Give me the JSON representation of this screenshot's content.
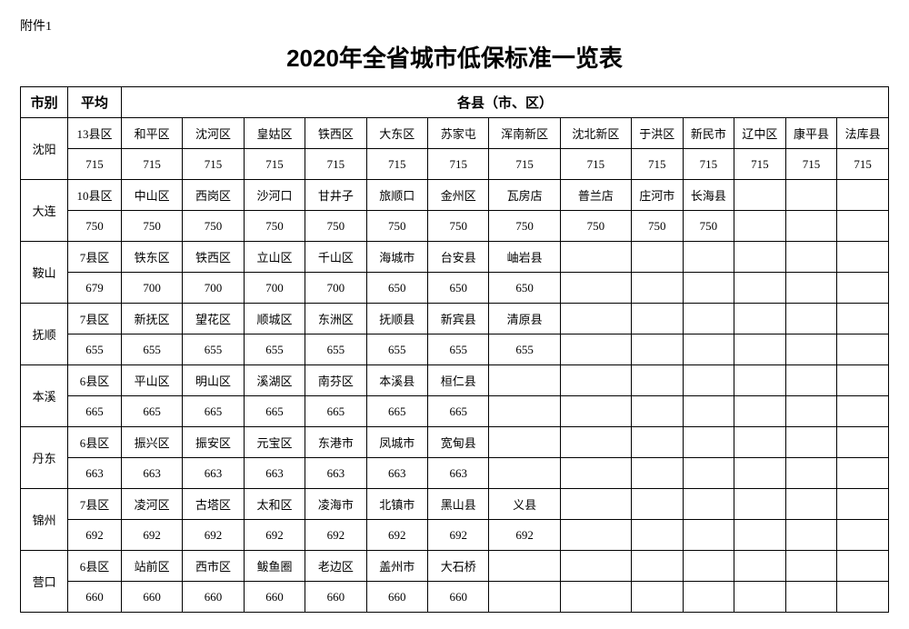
{
  "attachment_label": "附件1",
  "title": "2020年全省城市低保标准一览表",
  "header": {
    "city": "市别",
    "avg": "平均",
    "districts": "各县（市、区）"
  },
  "num_district_cols": 13,
  "cities": [
    {
      "name": "沈阳",
      "summary": "13县区",
      "avg_value": "715",
      "districts": [
        "和平区",
        "沈河区",
        "皇姑区",
        "铁西区",
        "大东区",
        "苏家屯",
        "浑南新区",
        "沈北新区",
        "于洪区",
        "新民市",
        "辽中区",
        "康平县",
        "法库县"
      ],
      "values": [
        "715",
        "715",
        "715",
        "715",
        "715",
        "715",
        "715",
        "715",
        "715",
        "715",
        "715",
        "715",
        "715"
      ]
    },
    {
      "name": "大连",
      "summary": "10县区",
      "avg_value": "750",
      "districts": [
        "中山区",
        "西岗区",
        "沙河口",
        "甘井子",
        "旅顺口",
        "金州区",
        "瓦房店",
        "普兰店",
        "庄河市",
        "长海县",
        "",
        "",
        ""
      ],
      "values": [
        "750",
        "750",
        "750",
        "750",
        "750",
        "750",
        "750",
        "750",
        "750",
        "750",
        "",
        "",
        ""
      ]
    },
    {
      "name": "鞍山",
      "summary": "7县区",
      "avg_value": "679",
      "districts": [
        "铁东区",
        "铁西区",
        "立山区",
        "千山区",
        "海城市",
        "台安县",
        "岫岩县",
        "",
        "",
        "",
        "",
        "",
        ""
      ],
      "values": [
        "700",
        "700",
        "700",
        "700",
        "650",
        "650",
        "650",
        "",
        "",
        "",
        "",
        "",
        ""
      ]
    },
    {
      "name": "抚顺",
      "summary": "7县区",
      "avg_value": "655",
      "districts": [
        "新抚区",
        "望花区",
        "顺城区",
        "东洲区",
        "抚顺县",
        "新宾县",
        "清原县",
        "",
        "",
        "",
        "",
        "",
        ""
      ],
      "values": [
        "655",
        "655",
        "655",
        "655",
        "655",
        "655",
        "655",
        "",
        "",
        "",
        "",
        "",
        ""
      ]
    },
    {
      "name": "本溪",
      "summary": "6县区",
      "avg_value": "665",
      "districts": [
        "平山区",
        "明山区",
        "溪湖区",
        "南芬区",
        "本溪县",
        "桓仁县",
        "",
        "",
        "",
        "",
        "",
        "",
        ""
      ],
      "values": [
        "665",
        "665",
        "665",
        "665",
        "665",
        "665",
        "",
        "",
        "",
        "",
        "",
        "",
        ""
      ]
    },
    {
      "name": "丹东",
      "summary": "6县区",
      "avg_value": "663",
      "districts": [
        "振兴区",
        "振安区",
        "元宝区",
        "东港市",
        "凤城市",
        "宽甸县",
        "",
        "",
        "",
        "",
        "",
        "",
        ""
      ],
      "values": [
        "663",
        "663",
        "663",
        "663",
        "663",
        "663",
        "",
        "",
        "",
        "",
        "",
        "",
        ""
      ]
    },
    {
      "name": "锦州",
      "summary": "7县区",
      "avg_value": "692",
      "districts": [
        "凌河区",
        "古塔区",
        "太和区",
        "凌海市",
        "北镇市",
        "黑山县",
        "义县",
        "",
        "",
        "",
        "",
        "",
        ""
      ],
      "values": [
        "692",
        "692",
        "692",
        "692",
        "692",
        "692",
        "692",
        "",
        "",
        "",
        "",
        "",
        ""
      ]
    },
    {
      "name": "营口",
      "summary": "6县区",
      "avg_value": "660",
      "districts": [
        "站前区",
        "西市区",
        "鲅鱼圈",
        "老边区",
        "盖州市",
        "大石桥",
        "",
        "",
        "",
        "",
        "",
        "",
        ""
      ],
      "values": [
        "660",
        "660",
        "660",
        "660",
        "660",
        "660",
        "",
        "",
        "",
        "",
        "",
        "",
        ""
      ]
    }
  ]
}
